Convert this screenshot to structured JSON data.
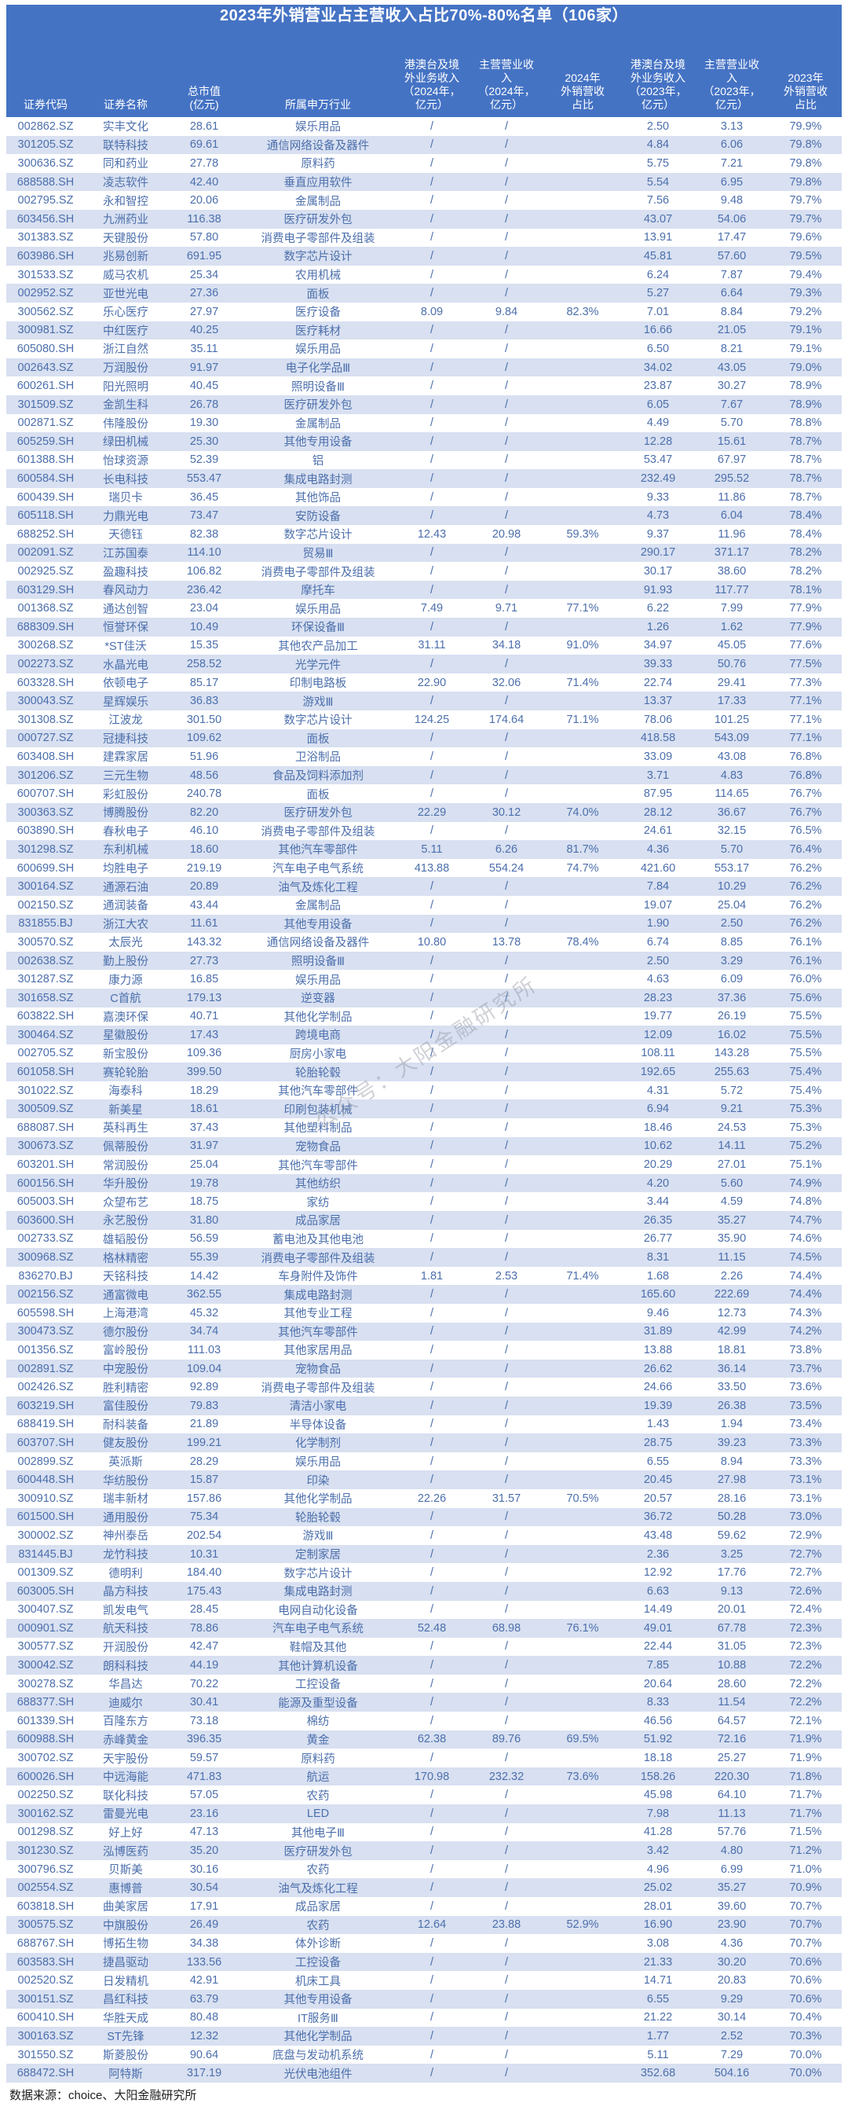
{
  "chart_data": {
    "type": "table",
    "title": "2023年外销营业占主营收入占比70%-80%名单（106家）",
    "columns": [
      "证券代码",
      "证券名称",
      "总市值\n(亿元)",
      "所属申万行业",
      "港澳台及境\n外业务收入\n（2024年，\n亿元）",
      "主营营业收\n入\n（2024年，\n亿元）",
      "2024年\n外销营收\n占比",
      "港澳台及境\n外业务收入\n（2023年，\n亿元）",
      "主营营业收\n入\n（2023年，\n亿元）",
      "2023年\n外销营收\n占比"
    ],
    "rows": [
      [
        "002862.SZ",
        "实丰文化",
        "28.61",
        "娱乐用品",
        "/",
        "/",
        "",
        "2.50",
        "3.13",
        "79.9%"
      ],
      [
        "301205.SZ",
        "联特科技",
        "69.61",
        "通信网络设备及器件",
        "/",
        "/",
        "",
        "4.84",
        "6.06",
        "79.8%"
      ],
      [
        "300636.SZ",
        "同和药业",
        "27.78",
        "原料药",
        "/",
        "/",
        "",
        "5.75",
        "7.21",
        "79.8%"
      ],
      [
        "688588.SH",
        "凌志软件",
        "42.40",
        "垂直应用软件",
        "/",
        "/",
        "",
        "5.54",
        "6.95",
        "79.8%"
      ],
      [
        "002795.SZ",
        "永和智控",
        "20.06",
        "金属制品",
        "/",
        "/",
        "",
        "7.56",
        "9.48",
        "79.7%"
      ],
      [
        "603456.SH",
        "九洲药业",
        "116.38",
        "医疗研发外包",
        "/",
        "/",
        "",
        "43.07",
        "54.06",
        "79.7%"
      ],
      [
        "301383.SZ",
        "天键股份",
        "57.80",
        "消费电子零部件及组装",
        "/",
        "/",
        "",
        "13.91",
        "17.47",
        "79.6%"
      ],
      [
        "603986.SH",
        "兆易创新",
        "691.95",
        "数字芯片设计",
        "/",
        "/",
        "",
        "45.81",
        "57.60",
        "79.5%"
      ],
      [
        "301533.SZ",
        "威马农机",
        "25.34",
        "农用机械",
        "/",
        "/",
        "",
        "6.24",
        "7.87",
        "79.4%"
      ],
      [
        "002952.SZ",
        "亚世光电",
        "27.36",
        "面板",
        "/",
        "/",
        "",
        "5.27",
        "6.64",
        "79.3%"
      ],
      [
        "300562.SZ",
        "乐心医疗",
        "27.97",
        "医疗设备",
        "8.09",
        "9.84",
        "82.3%",
        "7.01",
        "8.84",
        "79.2%"
      ],
      [
        "300981.SZ",
        "中红医疗",
        "40.25",
        "医疗耗材",
        "/",
        "/",
        "",
        "16.66",
        "21.05",
        "79.1%"
      ],
      [
        "605080.SH",
        "浙江自然",
        "35.11",
        "娱乐用品",
        "/",
        "/",
        "",
        "6.50",
        "8.21",
        "79.1%"
      ],
      [
        "002643.SZ",
        "万润股份",
        "91.97",
        "电子化学品Ⅲ",
        "/",
        "/",
        "",
        "34.02",
        "43.05",
        "79.0%"
      ],
      [
        "600261.SH",
        "阳光照明",
        "40.45",
        "照明设备Ⅲ",
        "/",
        "/",
        "",
        "23.87",
        "30.27",
        "78.9%"
      ],
      [
        "301509.SZ",
        "金凯生科",
        "26.78",
        "医疗研发外包",
        "/",
        "/",
        "",
        "6.05",
        "7.67",
        "78.9%"
      ],
      [
        "002871.SZ",
        "伟隆股份",
        "19.30",
        "金属制品",
        "/",
        "/",
        "",
        "4.49",
        "5.70",
        "78.8%"
      ],
      [
        "605259.SH",
        "绿田机械",
        "25.30",
        "其他专用设备",
        "/",
        "/",
        "",
        "12.28",
        "15.61",
        "78.7%"
      ],
      [
        "601388.SH",
        "怡球资源",
        "52.39",
        "铝",
        "/",
        "/",
        "",
        "53.47",
        "67.97",
        "78.7%"
      ],
      [
        "600584.SH",
        "长电科技",
        "553.47",
        "集成电路封测",
        "/",
        "/",
        "",
        "232.49",
        "295.52",
        "78.7%"
      ],
      [
        "600439.SH",
        "瑞贝卡",
        "36.45",
        "其他饰品",
        "/",
        "/",
        "",
        "9.33",
        "11.86",
        "78.7%"
      ],
      [
        "605118.SH",
        "力鼎光电",
        "73.47",
        "安防设备",
        "/",
        "/",
        "",
        "4.73",
        "6.04",
        "78.4%"
      ],
      [
        "688252.SH",
        "天德钰",
        "82.38",
        "数字芯片设计",
        "12.43",
        "20.98",
        "59.3%",
        "9.37",
        "11.96",
        "78.4%"
      ],
      [
        "002091.SZ",
        "江苏国泰",
        "114.10",
        "贸易Ⅲ",
        "/",
        "/",
        "",
        "290.17",
        "371.17",
        "78.2%"
      ],
      [
        "002925.SZ",
        "盈趣科技",
        "106.82",
        "消费电子零部件及组装",
        "/",
        "/",
        "",
        "30.17",
        "38.60",
        "78.2%"
      ],
      [
        "603129.SH",
        "春风动力",
        "236.42",
        "摩托车",
        "/",
        "/",
        "",
        "91.93",
        "117.77",
        "78.1%"
      ],
      [
        "001368.SZ",
        "通达创智",
        "23.04",
        "娱乐用品",
        "7.49",
        "9.71",
        "77.1%",
        "6.22",
        "7.99",
        "77.9%"
      ],
      [
        "688309.SH",
        "恒誉环保",
        "10.49",
        "环保设备Ⅲ",
        "/",
        "/",
        "",
        "1.26",
        "1.62",
        "77.9%"
      ],
      [
        "300268.SZ",
        "*ST佳沃",
        "15.35",
        "其他农产品加工",
        "31.11",
        "34.18",
        "91.0%",
        "34.97",
        "45.05",
        "77.6%"
      ],
      [
        "002273.SZ",
        "水晶光电",
        "258.52",
        "光学元件",
        "/",
        "/",
        "",
        "39.33",
        "50.76",
        "77.5%"
      ],
      [
        "603328.SH",
        "依顿电子",
        "85.17",
        "印制电路板",
        "22.90",
        "32.06",
        "71.4%",
        "22.74",
        "29.41",
        "77.3%"
      ],
      [
        "300043.SZ",
        "星辉娱乐",
        "36.83",
        "游戏Ⅲ",
        "/",
        "/",
        "",
        "13.37",
        "17.33",
        "77.1%"
      ],
      [
        "301308.SZ",
        "江波龙",
        "301.50",
        "数字芯片设计",
        "124.25",
        "174.64",
        "71.1%",
        "78.06",
        "101.25",
        "77.1%"
      ],
      [
        "000727.SZ",
        "冠捷科技",
        "109.62",
        "面板",
        "/",
        "/",
        "",
        "418.58",
        "543.09",
        "77.1%"
      ],
      [
        "603408.SH",
        "建霖家居",
        "51.96",
        "卫浴制品",
        "/",
        "/",
        "",
        "33.09",
        "43.08",
        "76.8%"
      ],
      [
        "301206.SZ",
        "三元生物",
        "48.56",
        "食品及饲料添加剂",
        "/",
        "/",
        "",
        "3.71",
        "4.83",
        "76.8%"
      ],
      [
        "600707.SH",
        "彩虹股份",
        "240.78",
        "面板",
        "/",
        "/",
        "",
        "87.95",
        "114.65",
        "76.7%"
      ],
      [
        "300363.SZ",
        "博腾股份",
        "82.20",
        "医疗研发外包",
        "22.29",
        "30.12",
        "74.0%",
        "28.12",
        "36.67",
        "76.7%"
      ],
      [
        "603890.SH",
        "春秋电子",
        "46.10",
        "消费电子零部件及组装",
        "/",
        "/",
        "",
        "24.61",
        "32.15",
        "76.5%"
      ],
      [
        "301298.SZ",
        "东利机械",
        "18.60",
        "其他汽车零部件",
        "5.11",
        "6.26",
        "81.7%",
        "4.36",
        "5.70",
        "76.4%"
      ],
      [
        "600699.SH",
        "均胜电子",
        "219.19",
        "汽车电子电气系统",
        "413.88",
        "554.24",
        "74.7%",
        "421.60",
        "553.17",
        "76.2%"
      ],
      [
        "300164.SZ",
        "通源石油",
        "20.89",
        "油气及炼化工程",
        "/",
        "/",
        "",
        "7.84",
        "10.29",
        "76.2%"
      ],
      [
        "002150.SZ",
        "通润装备",
        "43.44",
        "金属制品",
        "/",
        "/",
        "",
        "19.07",
        "25.04",
        "76.2%"
      ],
      [
        "831855.BJ",
        "浙江大农",
        "11.61",
        "其他专用设备",
        "/",
        "/",
        "",
        "1.90",
        "2.50",
        "76.2%"
      ],
      [
        "300570.SZ",
        "太辰光",
        "143.32",
        "通信网络设备及器件",
        "10.80",
        "13.78",
        "78.4%",
        "6.74",
        "8.85",
        "76.1%"
      ],
      [
        "002638.SZ",
        "勤上股份",
        "27.73",
        "照明设备Ⅲ",
        "/",
        "/",
        "",
        "2.50",
        "3.29",
        "76.1%"
      ],
      [
        "301287.SZ",
        "康力源",
        "16.85",
        "娱乐用品",
        "/",
        "/",
        "",
        "4.63",
        "6.09",
        "76.0%"
      ],
      [
        "301658.SZ",
        "C首航",
        "179.13",
        "逆变器",
        "/",
        "/",
        "",
        "28.23",
        "37.36",
        "75.6%"
      ],
      [
        "603822.SH",
        "嘉澳环保",
        "40.71",
        "其他化学制品",
        "/",
        "/",
        "",
        "19.77",
        "26.19",
        "75.5%"
      ],
      [
        "300464.SZ",
        "星徽股份",
        "17.43",
        "跨境电商",
        "/",
        "/",
        "",
        "12.09",
        "16.02",
        "75.5%"
      ],
      [
        "002705.SZ",
        "新宝股份",
        "109.36",
        "厨房小家电",
        "/",
        "/",
        "",
        "108.11",
        "143.28",
        "75.5%"
      ],
      [
        "601058.SH",
        "赛轮轮胎",
        "399.50",
        "轮胎轮毂",
        "/",
        "/",
        "",
        "192.65",
        "255.63",
        "75.4%"
      ],
      [
        "301022.SZ",
        "海泰科",
        "18.29",
        "其他汽车零部件",
        "/",
        "/",
        "",
        "4.31",
        "5.72",
        "75.4%"
      ],
      [
        "300509.SZ",
        "新美星",
        "18.61",
        "印刷包装机械",
        "/",
        "/",
        "",
        "6.94",
        "9.21",
        "75.3%"
      ],
      [
        "688087.SH",
        "英科再生",
        "37.43",
        "其他塑料制品",
        "/",
        "/",
        "",
        "18.46",
        "24.53",
        "75.3%"
      ],
      [
        "300673.SZ",
        "佩蒂股份",
        "31.97",
        "宠物食品",
        "/",
        "/",
        "",
        "10.62",
        "14.11",
        "75.2%"
      ],
      [
        "603201.SH",
        "常润股份",
        "25.04",
        "其他汽车零部件",
        "/",
        "/",
        "",
        "20.29",
        "27.01",
        "75.1%"
      ],
      [
        "600156.SH",
        "华升股份",
        "19.78",
        "其他纺织",
        "/",
        "/",
        "",
        "4.20",
        "5.60",
        "74.9%"
      ],
      [
        "605003.SH",
        "众望布艺",
        "18.75",
        "家纺",
        "/",
        "/",
        "",
        "3.44",
        "4.59",
        "74.8%"
      ],
      [
        "603600.SH",
        "永艺股份",
        "31.80",
        "成品家居",
        "/",
        "/",
        "",
        "26.35",
        "35.27",
        "74.7%"
      ],
      [
        "002733.SZ",
        "雄韬股份",
        "56.59",
        "蓄电池及其他电池",
        "/",
        "/",
        "",
        "26.77",
        "35.90",
        "74.6%"
      ],
      [
        "300968.SZ",
        "格林精密",
        "55.39",
        "消费电子零部件及组装",
        "/",
        "/",
        "",
        "8.31",
        "11.15",
        "74.5%"
      ],
      [
        "836270.BJ",
        "天铭科技",
        "14.42",
        "车身附件及饰件",
        "1.81",
        "2.53",
        "71.4%",
        "1.68",
        "2.26",
        "74.4%"
      ],
      [
        "002156.SZ",
        "通富微电",
        "362.55",
        "集成电路封测",
        "/",
        "/",
        "",
        "165.60",
        "222.69",
        "74.4%"
      ],
      [
        "605598.SH",
        "上海港湾",
        "45.32",
        "其他专业工程",
        "/",
        "/",
        "",
        "9.46",
        "12.73",
        "74.3%"
      ],
      [
        "300473.SZ",
        "德尔股份",
        "34.74",
        "其他汽车零部件",
        "/",
        "/",
        "",
        "31.89",
        "42.99",
        "74.2%"
      ],
      [
        "001356.SZ",
        "富岭股份",
        "111.03",
        "其他家居用品",
        "/",
        "/",
        "",
        "13.88",
        "18.81",
        "73.8%"
      ],
      [
        "002891.SZ",
        "中宠股份",
        "109.04",
        "宠物食品",
        "/",
        "/",
        "",
        "26.62",
        "36.14",
        "73.7%"
      ],
      [
        "002426.SZ",
        "胜利精密",
        "92.89",
        "消费电子零部件及组装",
        "/",
        "/",
        "",
        "24.66",
        "33.50",
        "73.6%"
      ],
      [
        "603219.SH",
        "富佳股份",
        "79.83",
        "清洁小家电",
        "/",
        "/",
        "",
        "19.39",
        "26.38",
        "73.5%"
      ],
      [
        "688419.SH",
        "耐科装备",
        "21.89",
        "半导体设备",
        "/",
        "/",
        "",
        "1.43",
        "1.94",
        "73.4%"
      ],
      [
        "603707.SH",
        "健友股份",
        "199.21",
        "化学制剂",
        "/",
        "/",
        "",
        "28.75",
        "39.23",
        "73.3%"
      ],
      [
        "002899.SZ",
        "英派斯",
        "28.29",
        "娱乐用品",
        "/",
        "/",
        "",
        "6.55",
        "8.94",
        "73.3%"
      ],
      [
        "600448.SH",
        "华纺股份",
        "15.87",
        "印染",
        "/",
        "/",
        "",
        "20.45",
        "27.98",
        "73.1%"
      ],
      [
        "300910.SZ",
        "瑞丰新材",
        "157.86",
        "其他化学制品",
        "22.26",
        "31.57",
        "70.5%",
        "20.57",
        "28.16",
        "73.1%"
      ],
      [
        "601500.SH",
        "通用股份",
        "75.34",
        "轮胎轮毂",
        "/",
        "/",
        "",
        "36.72",
        "50.28",
        "73.0%"
      ],
      [
        "300002.SZ",
        "神州泰岳",
        "202.54",
        "游戏Ⅲ",
        "/",
        "/",
        "",
        "43.48",
        "59.62",
        "72.9%"
      ],
      [
        "831445.BJ",
        "龙竹科技",
        "10.31",
        "定制家居",
        "/",
        "/",
        "",
        "2.36",
        "3.25",
        "72.7%"
      ],
      [
        "001309.SZ",
        "德明利",
        "184.40",
        "数字芯片设计",
        "/",
        "/",
        "",
        "12.92",
        "17.76",
        "72.7%"
      ],
      [
        "603005.SH",
        "晶方科技",
        "175.43",
        "集成电路封测",
        "/",
        "/",
        "",
        "6.63",
        "9.13",
        "72.6%"
      ],
      [
        "300407.SZ",
        "凯发电气",
        "28.45",
        "电网自动化设备",
        "/",
        "/",
        "",
        "14.49",
        "20.01",
        "72.4%"
      ],
      [
        "000901.SZ",
        "航天科技",
        "78.86",
        "汽车电子电气系统",
        "52.48",
        "68.98",
        "76.1%",
        "49.01",
        "67.78",
        "72.3%"
      ],
      [
        "300577.SZ",
        "开润股份",
        "42.47",
        "鞋帽及其他",
        "/",
        "/",
        "",
        "22.44",
        "31.05",
        "72.3%"
      ],
      [
        "300042.SZ",
        "朗科科技",
        "44.19",
        "其他计算机设备",
        "/",
        "/",
        "",
        "7.85",
        "10.88",
        "72.2%"
      ],
      [
        "300278.SZ",
        "华昌达",
        "70.22",
        "工控设备",
        "/",
        "/",
        "",
        "20.64",
        "28.60",
        "72.2%"
      ],
      [
        "688377.SH",
        "迪威尔",
        "30.41",
        "能源及重型设备",
        "/",
        "/",
        "",
        "8.33",
        "11.54",
        "72.2%"
      ],
      [
        "601339.SH",
        "百隆东方",
        "73.18",
        "棉纺",
        "/",
        "/",
        "",
        "46.56",
        "64.57",
        "72.1%"
      ],
      [
        "600988.SH",
        "赤峰黄金",
        "396.35",
        "黄金",
        "62.38",
        "89.76",
        "69.5%",
        "51.92",
        "72.16",
        "71.9%"
      ],
      [
        "300702.SZ",
        "天宇股份",
        "59.57",
        "原料药",
        "/",
        "/",
        "",
        "18.18",
        "25.27",
        "71.9%"
      ],
      [
        "600026.SH",
        "中远海能",
        "471.83",
        "航运",
        "170.98",
        "232.32",
        "73.6%",
        "158.26",
        "220.30",
        "71.8%"
      ],
      [
        "002250.SZ",
        "联化科技",
        "57.05",
        "农药",
        "/",
        "/",
        "",
        "45.98",
        "64.10",
        "71.7%"
      ],
      [
        "300162.SZ",
        "雷曼光电",
        "23.16",
        "LED",
        "/",
        "/",
        "",
        "7.98",
        "11.13",
        "71.7%"
      ],
      [
        "001298.SZ",
        "好上好",
        "47.13",
        "其他电子Ⅲ",
        "/",
        "/",
        "",
        "41.28",
        "57.76",
        "71.5%"
      ],
      [
        "301230.SZ",
        "泓博医药",
        "35.20",
        "医疗研发外包",
        "/",
        "/",
        "",
        "3.42",
        "4.80",
        "71.2%"
      ],
      [
        "300796.SZ",
        "贝斯美",
        "30.16",
        "农药",
        "/",
        "/",
        "",
        "4.96",
        "6.99",
        "71.0%"
      ],
      [
        "002554.SZ",
        "惠博普",
        "30.54",
        "油气及炼化工程",
        "/",
        "/",
        "",
        "25.02",
        "35.27",
        "70.9%"
      ],
      [
        "603818.SH",
        "曲美家居",
        "17.91",
        "成品家居",
        "/",
        "/",
        "",
        "28.01",
        "39.60",
        "70.7%"
      ],
      [
        "300575.SZ",
        "中旗股份",
        "26.49",
        "农药",
        "12.64",
        "23.88",
        "52.9%",
        "16.90",
        "23.90",
        "70.7%"
      ],
      [
        "688767.SH",
        "博拓生物",
        "34.38",
        "体外诊断",
        "/",
        "/",
        "",
        "3.08",
        "4.36",
        "70.7%"
      ],
      [
        "603583.SH",
        "捷昌驱动",
        "133.56",
        "工控设备",
        "/",
        "/",
        "",
        "21.33",
        "30.20",
        "70.6%"
      ],
      [
        "002520.SZ",
        "日发精机",
        "42.91",
        "机床工具",
        "/",
        "/",
        "",
        "14.71",
        "20.83",
        "70.6%"
      ],
      [
        "300151.SZ",
        "昌红科技",
        "63.79",
        "其他专用设备",
        "/",
        "/",
        "",
        "6.55",
        "9.29",
        "70.6%"
      ],
      [
        "600410.SH",
        "华胜天成",
        "80.48",
        "IT服务Ⅲ",
        "/",
        "/",
        "",
        "21.22",
        "30.14",
        "70.4%"
      ],
      [
        "300163.SZ",
        "ST先锋",
        "12.32",
        "其他化学制品",
        "/",
        "/",
        "",
        "1.77",
        "2.52",
        "70.3%"
      ],
      [
        "301550.SZ",
        "斯菱股份",
        "90.64",
        "底盘与发动机系统",
        "/",
        "/",
        "",
        "5.11",
        "7.29",
        "70.0%"
      ],
      [
        "688472.SH",
        "阿特斯",
        "317.19",
        "光伏电池组件",
        "/",
        "/",
        "",
        "352.68",
        "504.16",
        "70.0%"
      ]
    ],
    "source_note": "数据来源：choice、大阳金融研究所",
    "watermark": "公众号：大阳金融研究所",
    "colors": {
      "header_bg": "#4573C4",
      "stripe": "#D8E0F1",
      "cell_text": "#4C6FAC"
    },
    "layout": {
      "grid": false,
      "row_count": 106,
      "striped": true
    }
  }
}
